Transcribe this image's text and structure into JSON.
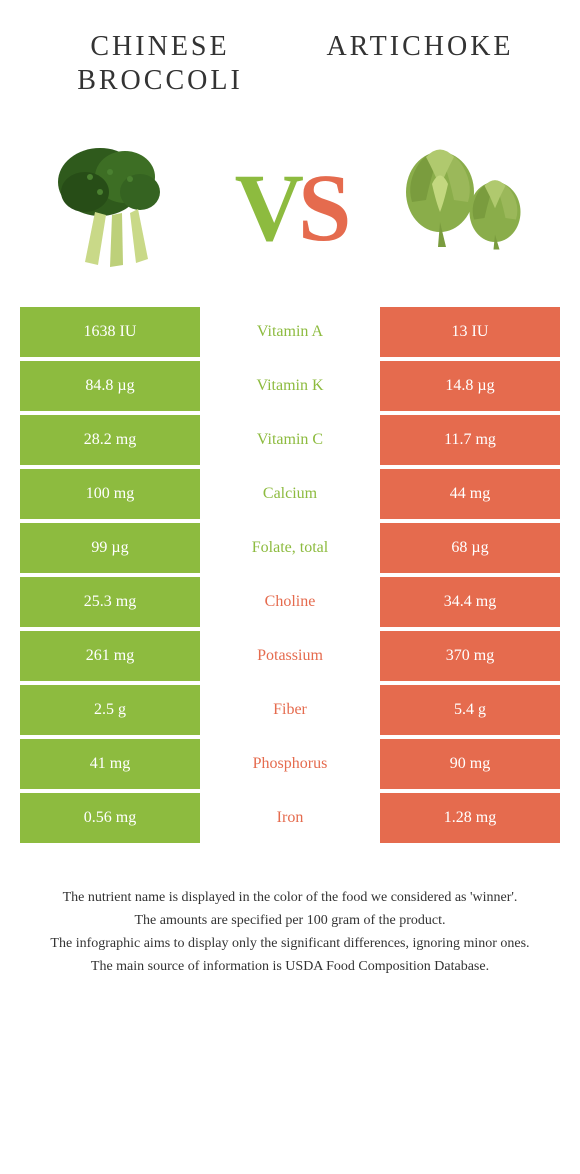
{
  "left_food": "Chinese broccoli",
  "right_food": "Artichoke",
  "colors": {
    "green": "#8dbb3f",
    "orange": "#e56b4e",
    "white": "#ffffff",
    "text": "#333333"
  },
  "rows": [
    {
      "nutrient": "Vitamin A",
      "left": "1638 IU",
      "right": "13 IU",
      "winner": "left"
    },
    {
      "nutrient": "Vitamin K",
      "left": "84.8 µg",
      "right": "14.8 µg",
      "winner": "left"
    },
    {
      "nutrient": "Vitamin C",
      "left": "28.2 mg",
      "right": "11.7 mg",
      "winner": "left"
    },
    {
      "nutrient": "Calcium",
      "left": "100 mg",
      "right": "44 mg",
      "winner": "left"
    },
    {
      "nutrient": "Folate, total",
      "left": "99 µg",
      "right": "68 µg",
      "winner": "left"
    },
    {
      "nutrient": "Choline",
      "left": "25.3 mg",
      "right": "34.4 mg",
      "winner": "right"
    },
    {
      "nutrient": "Potassium",
      "left": "261 mg",
      "right": "370 mg",
      "winner": "right"
    },
    {
      "nutrient": "Fiber",
      "left": "2.5 g",
      "right": "5.4 g",
      "winner": "right"
    },
    {
      "nutrient": "Phosphorus",
      "left": "41 mg",
      "right": "90 mg",
      "winner": "right"
    },
    {
      "nutrient": "Iron",
      "left": "0.56 mg",
      "right": "1.28 mg",
      "winner": "right"
    }
  ],
  "footer": {
    "l1": "The nutrient name is displayed in the color of the food we considered as 'winner'.",
    "l2": "The amounts are specified per 100 gram of the product.",
    "l3": "The infographic aims to display only the significant differences, ignoring minor ones.",
    "l4": "The main source of information is USDA Food Composition Database."
  }
}
